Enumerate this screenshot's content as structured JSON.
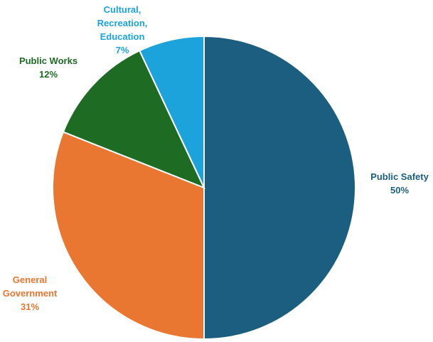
{
  "chart_data": {
    "type": "pie",
    "title": "",
    "start_angle_deg": 0,
    "direction": "clockwise",
    "legend": "none",
    "slices": [
      {
        "name": "Public Safety",
        "label_lines": [
          "Public Safety"
        ],
        "value": 50,
        "value_label": "50%",
        "color": "#1b5e80"
      },
      {
        "name": "General Government",
        "label_lines": [
          "General",
          "Government"
        ],
        "value": 31,
        "value_label": "31%",
        "color": "#e97631"
      },
      {
        "name": "Public Works",
        "label_lines": [
          "Public Works"
        ],
        "value": 12,
        "value_label": "12%",
        "color": "#1e6b24"
      },
      {
        "name": "Cultural, Recreation, Education",
        "label_lines": [
          "Cultural,",
          "Recreation,",
          "Education"
        ],
        "value": 7,
        "value_label": "7%",
        "color": "#1ca3dc"
      }
    ]
  }
}
